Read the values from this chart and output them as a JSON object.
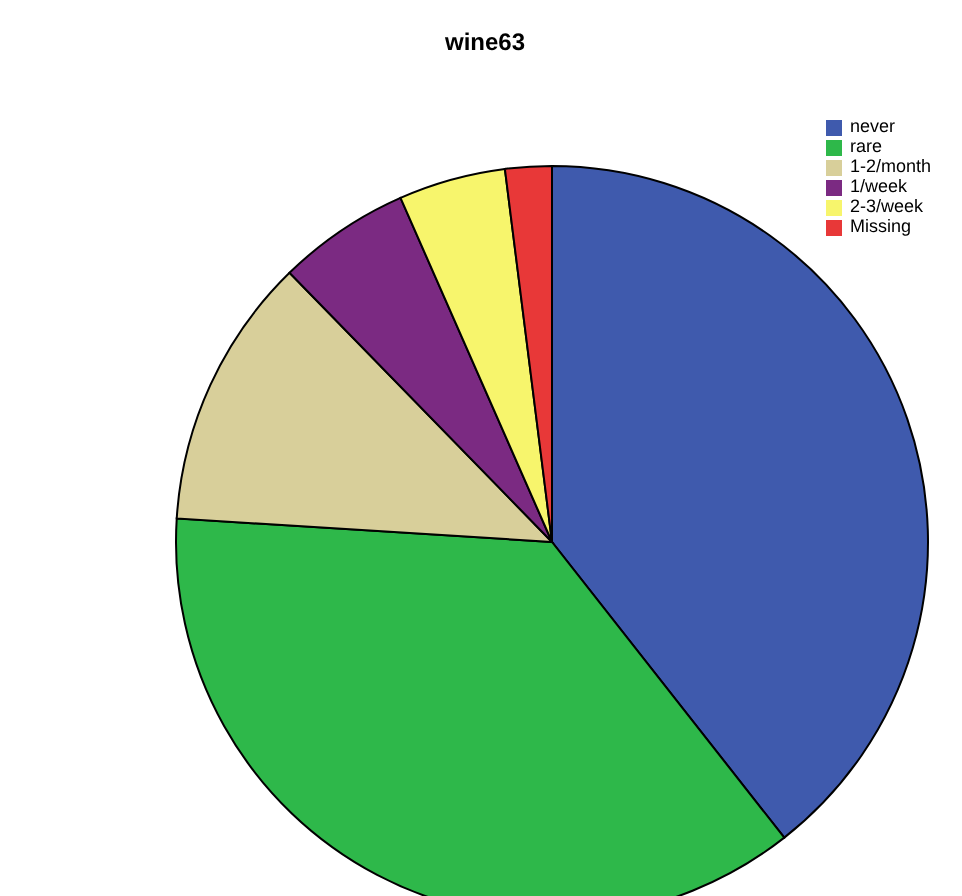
{
  "chart_data": {
    "type": "pie",
    "title": "wine63",
    "categories": [
      "never",
      "rare",
      "1-2/month",
      "1/week",
      "2-3/week",
      "Missing"
    ],
    "values": [
      39.4,
      36.6,
      11.7,
      5.7,
      4.6,
      2.0
    ],
    "colors": [
      "#3f5aad",
      "#2eb84a",
      "#d8cf9a",
      "#7b2a82",
      "#f7f56c",
      "#e83838"
    ],
    "legend": "top right"
  }
}
